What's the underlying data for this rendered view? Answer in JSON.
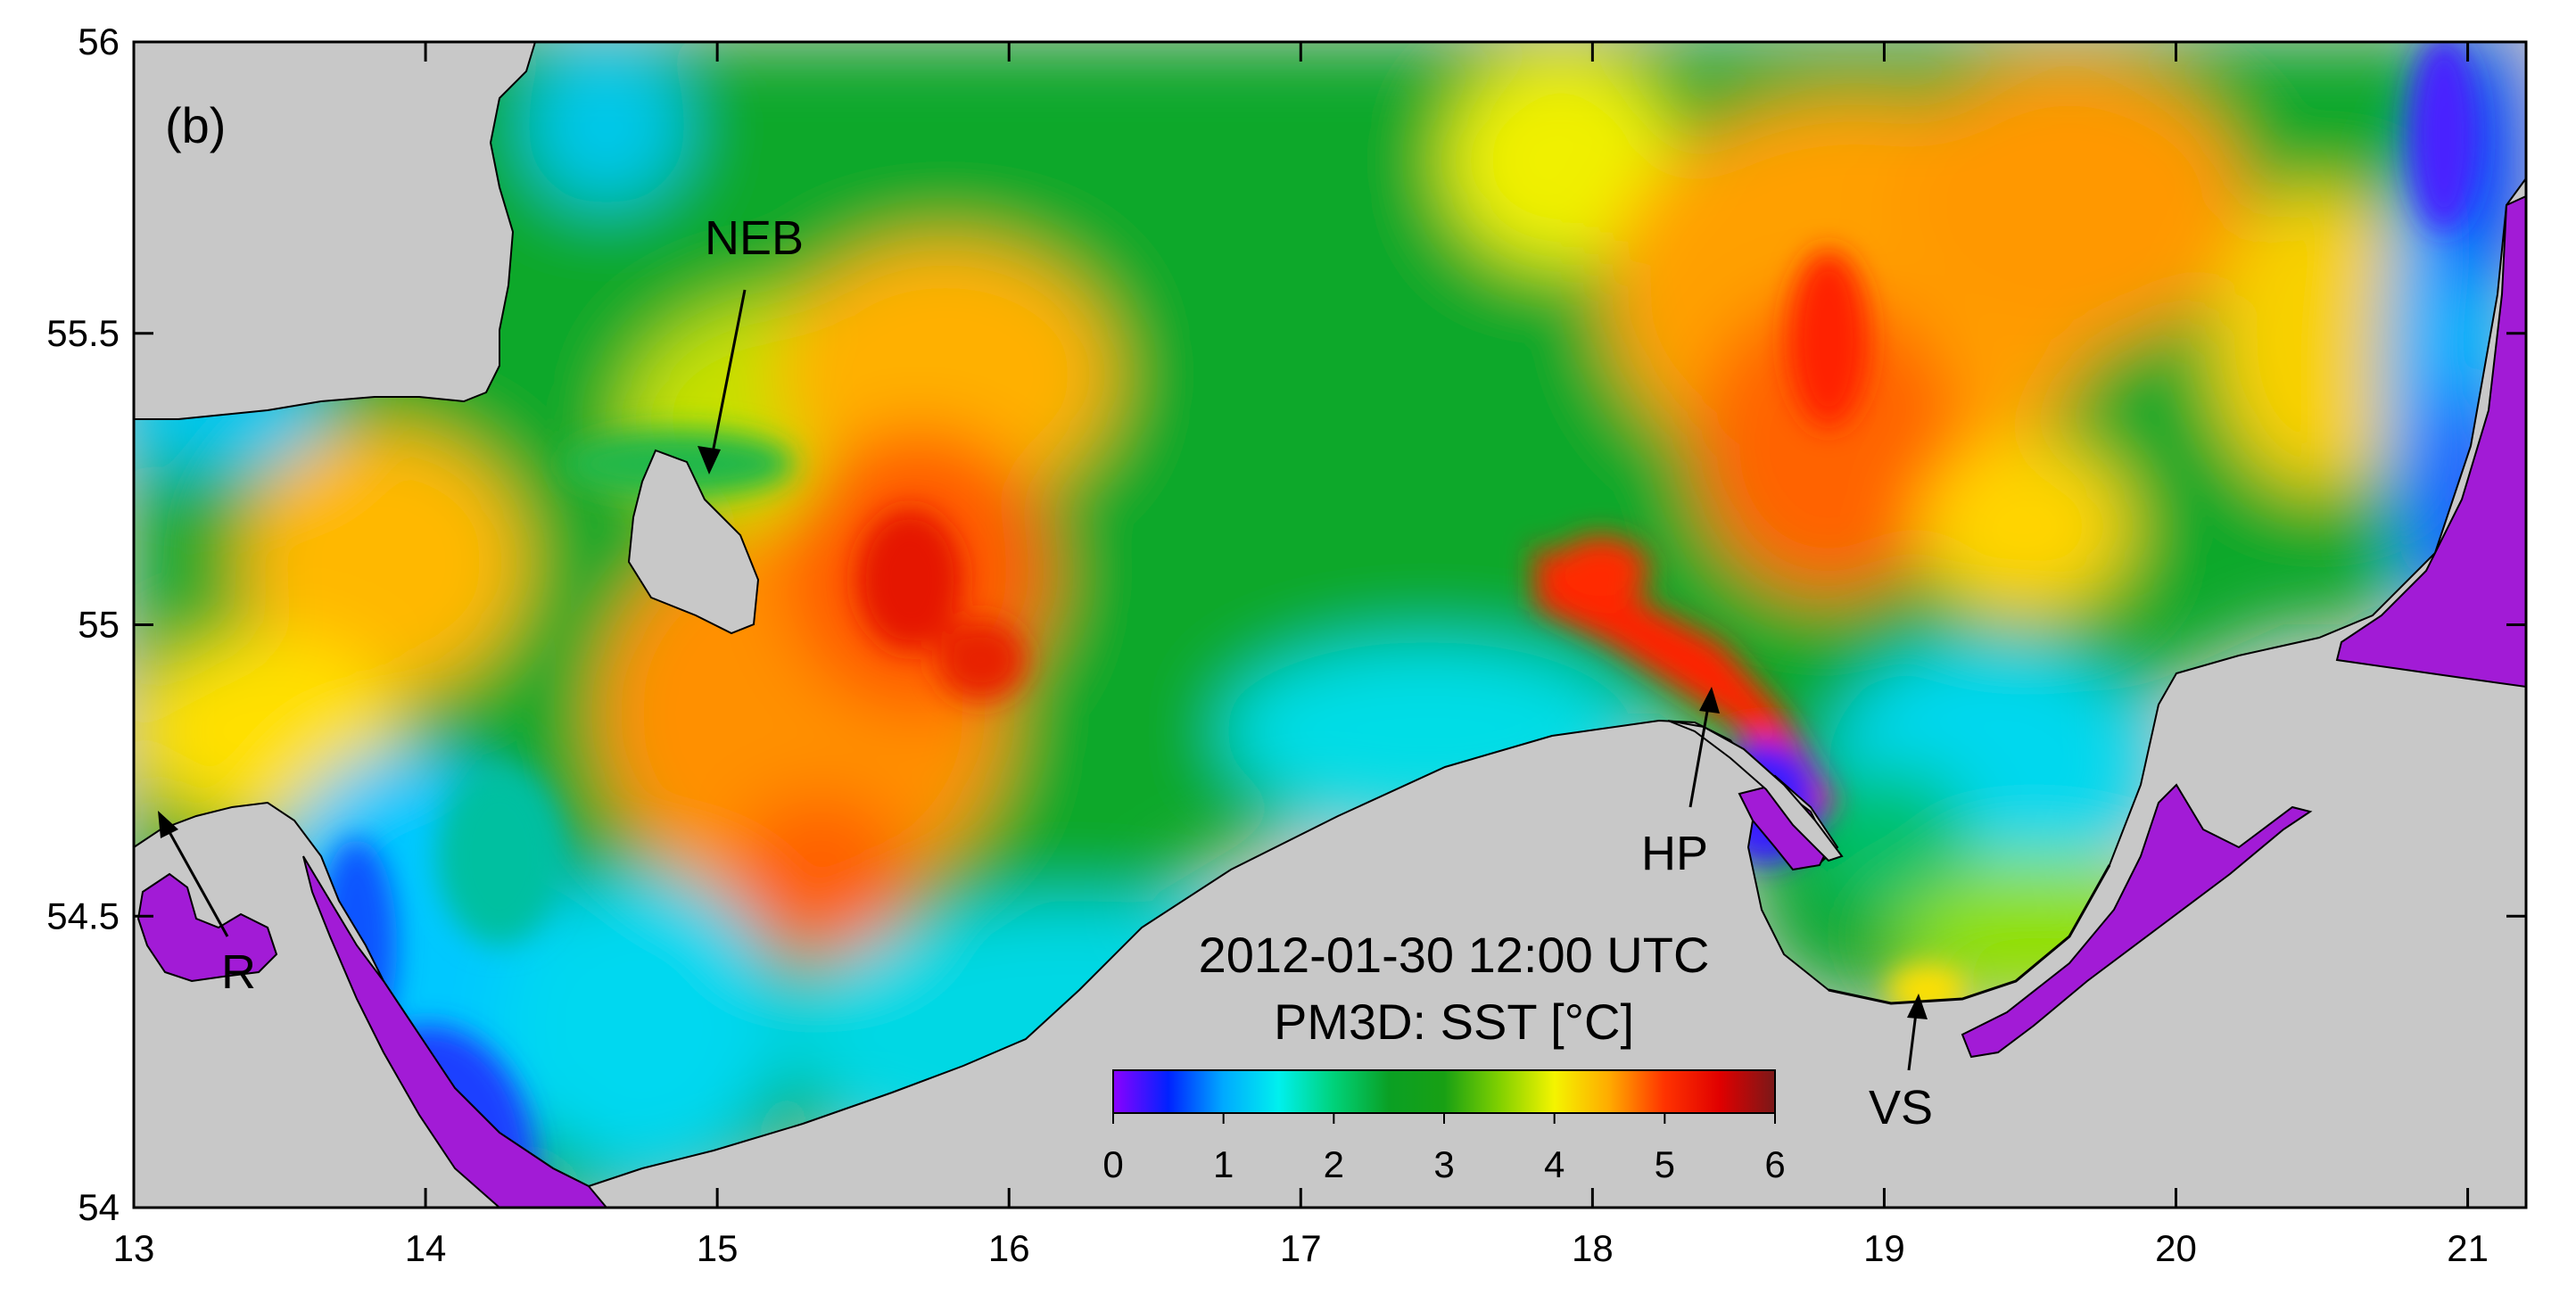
{
  "panel_label": "(b)",
  "timestamp": "2012-01-30 12:00 UTC",
  "variable_title": "PM3D: SST [°C]",
  "colors": {
    "land_foreign": "#c8c8c8",
    "land_polish": "#a21bd6",
    "colormap": [
      "#8c00ff",
      "#0022ff",
      "#00aaff",
      "#00f0ee",
      "#00d27a",
      "#0aa024",
      "#18a014",
      "#80d000",
      "#f4f400",
      "#ffaa00",
      "#ff3300",
      "#e00000",
      "#7a1818"
    ]
  },
  "axes": {
    "x_ticks": [
      "13",
      "14",
      "15",
      "16",
      "17",
      "18",
      "19",
      "20",
      "21"
    ],
    "y_ticks": [
      "54",
      "54.5",
      "55",
      "55.5",
      "56"
    ],
    "x_range": [
      13,
      21.2
    ],
    "y_range": [
      54,
      56
    ]
  },
  "colorbar": {
    "range": [
      0,
      6
    ],
    "ticks": [
      "0",
      "1",
      "2",
      "3",
      "4",
      "5",
      "6"
    ]
  },
  "annotations": [
    {
      "label": "NEB",
      "point": [
        14.97,
        55.25
      ]
    },
    {
      "label": "HP",
      "point": [
        18.45,
        54.88
      ]
    },
    {
      "label": "R",
      "point": [
        13.08,
        54.68
      ]
    },
    {
      "label": "VS",
      "point": [
        19.12,
        54.4
      ]
    }
  ]
}
